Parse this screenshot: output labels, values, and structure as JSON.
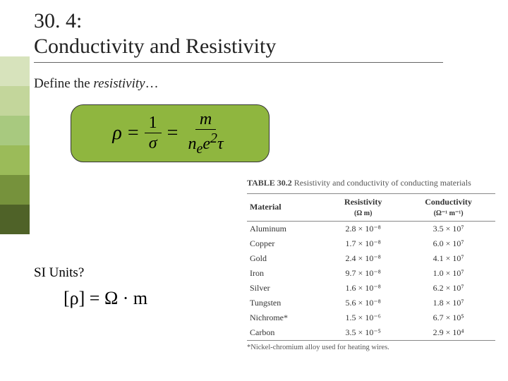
{
  "title": {
    "line1": "30. 4:",
    "line2": "Conductivity and Resistivity"
  },
  "define": {
    "prefix": "Define the ",
    "term": "resistivity",
    "suffix": "…"
  },
  "formula": {
    "lhs": "ρ",
    "eq": "=",
    "frac1_num": "1",
    "frac1_den": "σ",
    "frac2_num": "m",
    "frac2_den_html": "n<sub>e</sub>e<sup>2</sup>τ",
    "box_bg": "#8fb63f"
  },
  "si": {
    "label": "SI Units?",
    "expr": "[ρ] = Ω · m"
  },
  "table": {
    "caption_label": "TABLE 30.2",
    "caption_text": "Resistivity and conductivity of conducting materials",
    "columns": [
      {
        "label": "Material"
      },
      {
        "label": "Resistivity",
        "unit": "(Ω m)"
      },
      {
        "label": "Conductivity",
        "unit": "(Ω⁻¹ m⁻¹)"
      }
    ],
    "rows": [
      [
        "Aluminum",
        "2.8 × 10⁻⁸",
        "3.5 × 10⁷"
      ],
      [
        "Copper",
        "1.7 × 10⁻⁸",
        "6.0 × 10⁷"
      ],
      [
        "Gold",
        "2.4 × 10⁻⁸",
        "4.1 × 10⁷"
      ],
      [
        "Iron",
        "9.7 × 10⁻⁸",
        "1.0 × 10⁷"
      ],
      [
        "Silver",
        "1.6 × 10⁻⁸",
        "6.2 × 10⁷"
      ],
      [
        "Tungsten",
        "5.6 × 10⁻⁸",
        "1.8 × 10⁷"
      ],
      [
        "Nichrome*",
        "1.5 × 10⁻⁶",
        "6.7 × 10⁵"
      ],
      [
        "Carbon",
        "3.5 × 10⁻⁵",
        "2.9 × 10⁴"
      ]
    ],
    "footnote": "*Nickel-chromium alloy used for heating wires."
  },
  "sidebar_colors": [
    "#d7e3bc",
    "#c3d69b",
    "#a8c97f",
    "#9bbb59",
    "#76923c",
    "#4f6228"
  ]
}
